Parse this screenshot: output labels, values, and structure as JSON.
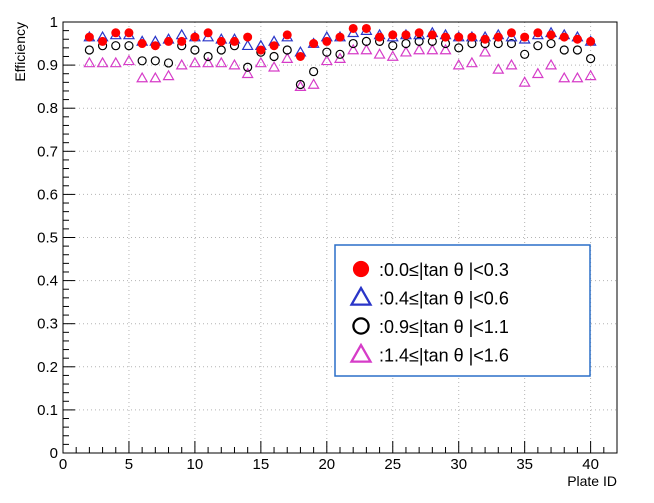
{
  "chart_data": {
    "type": "scatter",
    "xlabel": "Plate ID",
    "ylabel": "Efficiency",
    "xlim": [
      0,
      42
    ],
    "ylim": [
      0,
      1
    ],
    "xticks": [
      0,
      5,
      10,
      15,
      20,
      25,
      30,
      35,
      40
    ],
    "yticks": [
      0,
      0.1,
      0.2,
      0.3,
      0.4,
      0.5,
      0.6,
      0.7,
      0.8,
      0.9,
      1
    ],
    "xtick_labels": [
      "0",
      "5",
      "10",
      "15",
      "20",
      "25",
      "30",
      "35",
      "40"
    ],
    "ytick_labels": [
      "0",
      "0.1",
      "0.2",
      "0.3",
      "0.4",
      "0.5",
      "0.6",
      "0.7",
      "0.8",
      "0.9",
      "1"
    ],
    "grid": true,
    "legend_position": "lower-right",
    "x": [
      2,
      3,
      4,
      5,
      6,
      7,
      8,
      9,
      10,
      11,
      12,
      13,
      14,
      15,
      16,
      17,
      18,
      19,
      20,
      21,
      22,
      23,
      24,
      25,
      26,
      27,
      28,
      29,
      30,
      31,
      32,
      33,
      34,
      35,
      36,
      37,
      38,
      39,
      40
    ],
    "series": [
      {
        "name": ":0.0≤|tan θ |<0.3",
        "marker": "filled-circle",
        "color": "#ff0000",
        "values": [
          0.965,
          0.955,
          0.975,
          0.975,
          0.95,
          0.945,
          0.955,
          0.955,
          0.965,
          0.975,
          0.955,
          0.955,
          0.965,
          0.935,
          0.945,
          0.97,
          0.92,
          0.95,
          0.955,
          0.965,
          0.985,
          0.985,
          0.965,
          0.97,
          0.97,
          0.975,
          0.97,
          0.965,
          0.965,
          0.965,
          0.96,
          0.965,
          0.975,
          0.965,
          0.975,
          0.97,
          0.965,
          0.96,
          0.955
        ]
      },
      {
        "name": ":0.4≤|tan θ |<0.6",
        "marker": "open-triangle",
        "color": "#2a35c8",
        "values": [
          0.965,
          0.965,
          0.97,
          0.97,
          0.955,
          0.955,
          0.96,
          0.97,
          0.965,
          0.965,
          0.96,
          0.96,
          0.945,
          0.945,
          0.955,
          0.965,
          0.93,
          0.95,
          0.965,
          0.965,
          0.975,
          0.98,
          0.97,
          0.965,
          0.97,
          0.97,
          0.975,
          0.97,
          0.965,
          0.965,
          0.965,
          0.97,
          0.965,
          0.96,
          0.97,
          0.975,
          0.97,
          0.965,
          0.955
        ]
      },
      {
        "name": ":0.9≤|tan θ |<1.1",
        "marker": "open-circle",
        "color": "#000000",
        "values": [
          0.935,
          0.945,
          0.945,
          0.945,
          0.91,
          0.91,
          0.905,
          0.945,
          0.935,
          0.92,
          0.935,
          0.945,
          0.895,
          0.93,
          0.92,
          0.935,
          0.855,
          0.885,
          0.93,
          0.925,
          0.95,
          0.955,
          0.955,
          0.945,
          0.95,
          0.955,
          0.955,
          0.95,
          0.94,
          0.95,
          0.95,
          0.95,
          0.95,
          0.925,
          0.945,
          0.95,
          0.935,
          0.935,
          0.915
        ]
      },
      {
        "name": ":1.4≤|tan θ |<1.6",
        "marker": "open-triangle",
        "color": "#d63cc8",
        "values": [
          0.905,
          0.905,
          0.905,
          0.91,
          0.87,
          0.87,
          0.875,
          0.9,
          0.905,
          0.905,
          0.905,
          0.9,
          0.88,
          0.905,
          0.895,
          0.915,
          0.85,
          0.855,
          0.91,
          0.915,
          0.935,
          0.935,
          0.925,
          0.92,
          0.93,
          0.935,
          0.935,
          0.935,
          0.9,
          0.905,
          0.93,
          0.89,
          0.9,
          0.86,
          0.88,
          0.9,
          0.87,
          0.87,
          0.875
        ]
      }
    ]
  }
}
